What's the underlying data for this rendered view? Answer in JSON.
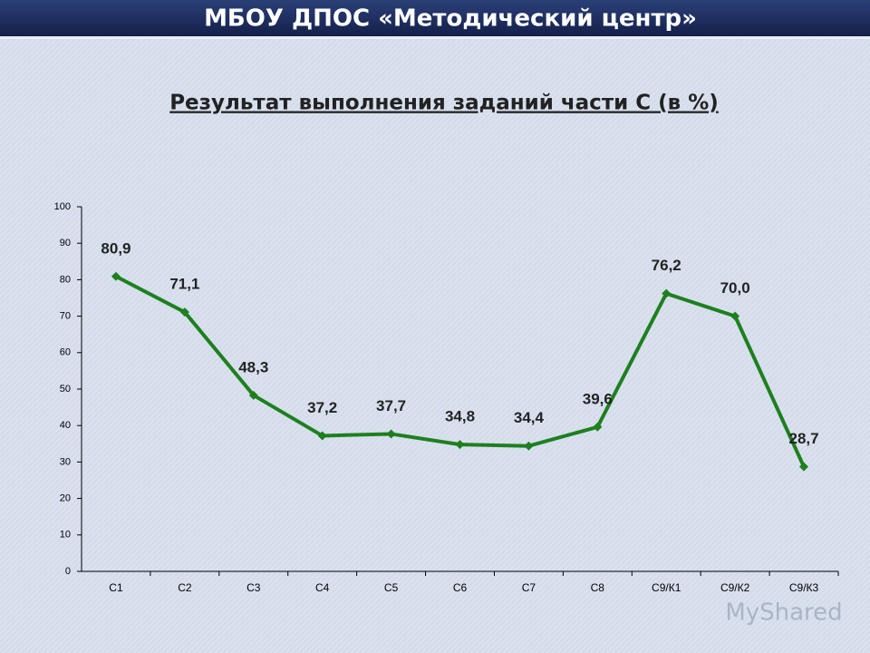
{
  "header": {
    "title": "МБОУ ДПОС «Методический центр»"
  },
  "watermark": "MyShared",
  "chart_data": {
    "type": "line",
    "title": "Результат выполнения заданий части С (в %)",
    "categories": [
      "С1",
      "С2",
      "С3",
      "С4",
      "С5",
      "С6",
      "С7",
      "С8",
      "С9/К1",
      "С9/К2",
      "С9/К3"
    ],
    "series": [
      {
        "name": "Результат",
        "color": "#1e7f1e",
        "values": [
          80.9,
          71.1,
          48.3,
          37.2,
          37.7,
          34.8,
          34.4,
          39.6,
          76.2,
          70.0,
          28.7
        ],
        "value_labels": [
          "80,9",
          "71,1",
          "48,3",
          "37,2",
          "37,7",
          "34,8",
          "34,4",
          "39,6",
          "76,2",
          "70,0",
          "28,7"
        ]
      }
    ],
    "ylim": [
      0,
      100
    ],
    "yticks": [
      0,
      10,
      20,
      30,
      40,
      50,
      60,
      70,
      80,
      90,
      100
    ],
    "grid": false
  }
}
